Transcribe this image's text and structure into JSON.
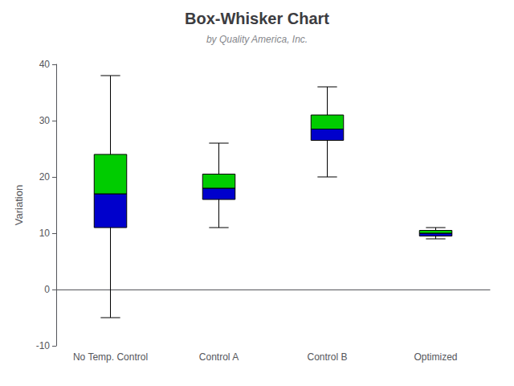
{
  "chart_data": {
    "type": "boxplot",
    "title": "Box-Whisker Chart",
    "subtitle": "by Quality America, Inc.",
    "ylabel": "Variation",
    "categories": [
      "No Temp. Control",
      "Control A",
      "Control B",
      "Optimized"
    ],
    "boxes": [
      {
        "whisker_low": -5,
        "q1": 11,
        "median": 17,
        "q3": 24,
        "whisker_high": 38
      },
      {
        "whisker_low": 11,
        "q1": 16,
        "median": 18,
        "q3": 20.5,
        "whisker_high": 26
      },
      {
        "whisker_low": 20,
        "q1": 26.5,
        "median": 28.5,
        "q3": 31,
        "whisker_high": 36
      },
      {
        "whisker_low": 9,
        "q1": 9.5,
        "median": 10,
        "q3": 10.5,
        "whisker_high": 11
      }
    ],
    "colors": [
      "#0000CC",
      "#00CC00"
    ],
    "ylim": [
      -10,
      40
    ],
    "yticks": [
      -10,
      0,
      10,
      20,
      30,
      40
    ],
    "grid": false
  }
}
